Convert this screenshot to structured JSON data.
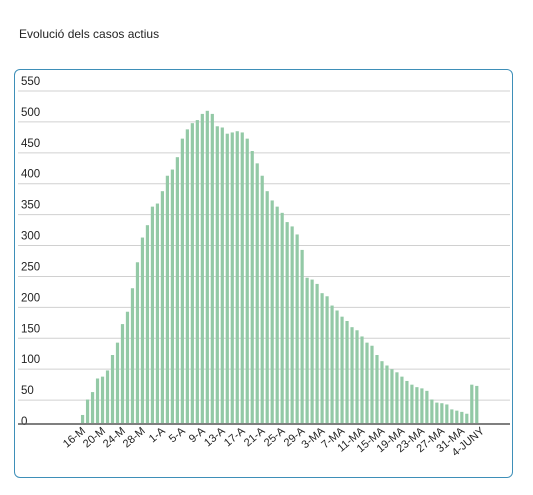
{
  "page": {
    "title": "Evolució dels casos actius"
  },
  "chart_data": {
    "type": "bar",
    "title": "",
    "xlabel": "",
    "ylabel": "",
    "ylim": [
      0,
      550
    ],
    "yticks": [
      0,
      50,
      100,
      150,
      200,
      250,
      300,
      350,
      400,
      450,
      500,
      550
    ],
    "grid": true,
    "legend": "none",
    "bar_color": "#93c9a6",
    "axis_color": "#555555",
    "grid_color": "#d0d0d0",
    "x_tick_labels": [
      "16-M",
      "20-M",
      "24-M",
      "28-M",
      "1-A",
      "5-A",
      "9-A",
      "13-A",
      "17-A",
      "21-A",
      "25-A",
      "29-A",
      "3-MA",
      "7-MA",
      "11-MA",
      "15-MA",
      "19-MA",
      "23-MA",
      "27-MA",
      "31-MA",
      "4-JUNY"
    ],
    "values": [
      0,
      0,
      0,
      13,
      38,
      50,
      72,
      75,
      85,
      110,
      130,
      160,
      180,
      218,
      260,
      300,
      320,
      350,
      355,
      375,
      400,
      410,
      430,
      460,
      475,
      485,
      490,
      500,
      505,
      500,
      480,
      478,
      468,
      470,
      472,
      470,
      460,
      440,
      420,
      400,
      375,
      360,
      350,
      340,
      325,
      318,
      305,
      280,
      235,
      232,
      225,
      210,
      205,
      190,
      182,
      172,
      165,
      155,
      150,
      140,
      130,
      125,
      110,
      100,
      93,
      87,
      82,
      75,
      68,
      62,
      58,
      56,
      52,
      38,
      33,
      32,
      30,
      22,
      20,
      18,
      15,
      62,
      60
    ]
  }
}
